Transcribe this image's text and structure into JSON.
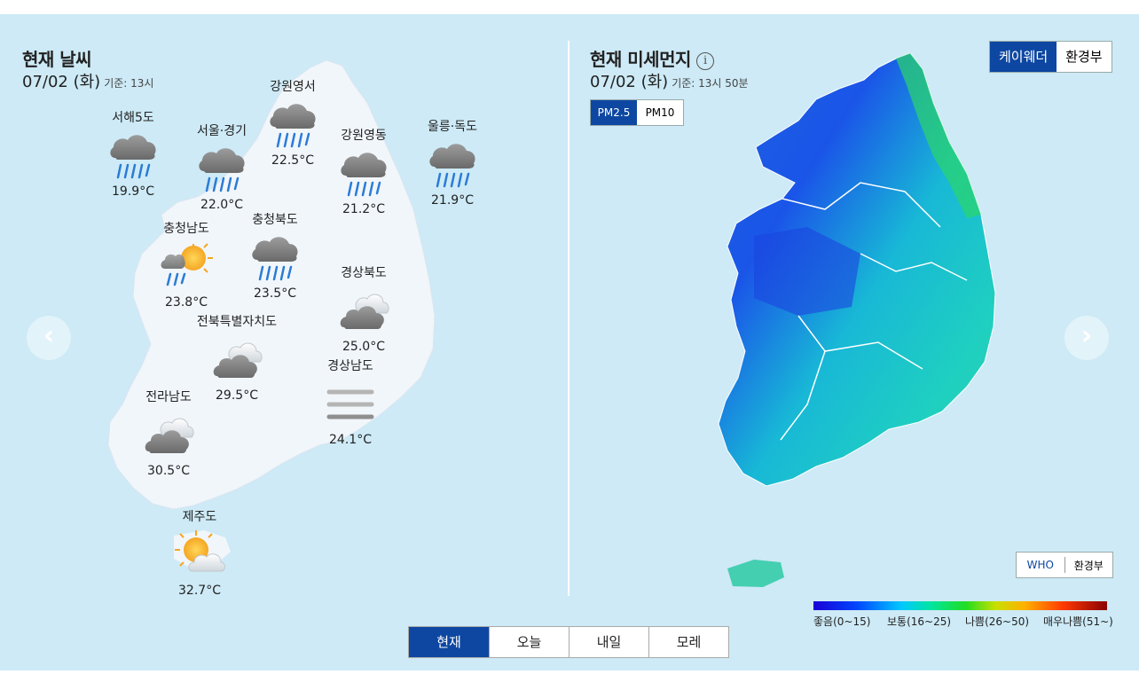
{
  "weather": {
    "title": "현재 날씨",
    "date": "07/02 (화)",
    "basis": "기준: 13시",
    "regions": [
      {
        "name": "서해5도",
        "temp": "19.9°C",
        "icon": "rain-icon"
      },
      {
        "name": "서울·경기",
        "temp": "22.0°C",
        "icon": "rain-icon"
      },
      {
        "name": "강원영서",
        "temp": "22.5°C",
        "icon": "rain-icon"
      },
      {
        "name": "강원영동",
        "temp": "21.2°C",
        "icon": "rain-icon"
      },
      {
        "name": "울릉·독도",
        "temp": "21.9°C",
        "icon": "rain-icon"
      },
      {
        "name": "충청남도",
        "temp": "23.8°C",
        "icon": "sun-shower-icon"
      },
      {
        "name": "충청북도",
        "temp": "23.5°C",
        "icon": "rain-icon"
      },
      {
        "name": "경상북도",
        "temp": "25.0°C",
        "icon": "cloudy-icon"
      },
      {
        "name": "전북특별자치도",
        "temp": "29.5°C",
        "icon": "cloudy-icon"
      },
      {
        "name": "경상남도",
        "temp": "24.1°C",
        "icon": "fog-icon"
      },
      {
        "name": "전라남도",
        "temp": "30.5°C",
        "icon": "cloudy-icon"
      },
      {
        "name": "제주도",
        "temp": "32.7°C",
        "icon": "partly-sunny-icon"
      }
    ]
  },
  "dust": {
    "title": "현재 미세먼지",
    "date": "07/02 (화)",
    "basis": "기준: 13시 50분",
    "info_symbol": "i",
    "source_options": [
      "케이웨더",
      "환경부"
    ],
    "source_selected": "케이웨더",
    "pm_options": [
      "PM2.5",
      "PM10"
    ],
    "pm_selected": "PM2.5",
    "standard_options": [
      "WHO",
      "환경부"
    ],
    "standard_selected": "WHO",
    "legend": [
      "좋음(0~15)",
      "보통(16~25)",
      "나쁨(26~50)",
      "매우나쁨(51~)"
    ]
  },
  "nav": {
    "prev": "‹",
    "next": "›"
  },
  "tabs": [
    "현재",
    "오늘",
    "내일",
    "모레"
  ],
  "tab_selected": "현재",
  "colors": {
    "accent": "#0d47a1",
    "background": "#cdeaf6"
  }
}
